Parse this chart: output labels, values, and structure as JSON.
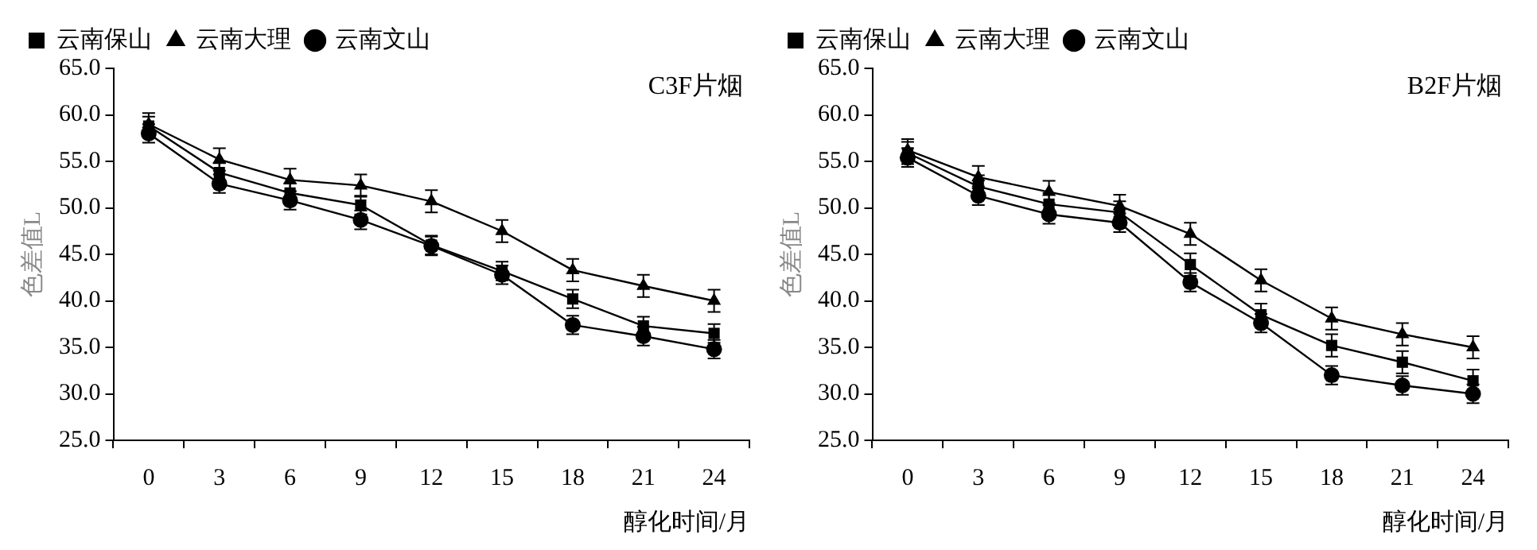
{
  "chart_data": [
    {
      "type": "line",
      "annotations": [
        "C3F片烟"
      ],
      "xlabel": "醇化时间/月",
      "ylabel": "色差值L",
      "categories": [
        "0",
        "3",
        "6",
        "9",
        "12",
        "15",
        "18",
        "21",
        "24"
      ],
      "ylim": [
        25,
        65
      ],
      "yticks": [
        {
          "value": 25,
          "label": "25.0"
        },
        {
          "value": 30,
          "label": "30.0"
        },
        {
          "value": 35,
          "label": "35.0"
        },
        {
          "value": 40,
          "label": "40.0"
        },
        {
          "value": 45,
          "label": "45.0"
        },
        {
          "value": 50,
          "label": "50.0"
        },
        {
          "value": 55,
          "label": "55.0"
        },
        {
          "value": 60,
          "label": "60.0"
        },
        {
          "value": 65,
          "label": "65.0"
        }
      ],
      "grid": false,
      "legend": "top",
      "line_style": "solid",
      "series": [
        {
          "name": "云南保山",
          "color": "#000000",
          "marker": "square",
          "values": [
            58.8,
            53.8,
            51.6,
            50.3,
            46.0,
            43.2,
            40.2,
            37.3,
            36.5
          ],
          "errors": [
            1.0,
            1.0,
            1.0,
            1.0,
            1.0,
            1.0,
            1.0,
            1.0,
            1.0
          ]
        },
        {
          "name": "云南大理",
          "color": "#000000",
          "marker": "triangle",
          "values": [
            59.0,
            55.2,
            53.0,
            52.4,
            50.7,
            47.5,
            43.3,
            41.6,
            40.0
          ],
          "errors": [
            1.2,
            1.2,
            1.2,
            1.2,
            1.2,
            1.2,
            1.2,
            1.2,
            1.2
          ]
        },
        {
          "name": "云南文山",
          "color": "#000000",
          "marker": "circle",
          "values": [
            58.0,
            52.6,
            50.8,
            48.7,
            45.9,
            42.8,
            37.4,
            36.2,
            34.8
          ],
          "errors": [
            1.0,
            1.0,
            1.0,
            1.0,
            1.0,
            1.0,
            1.0,
            1.0,
            1.0
          ]
        }
      ]
    },
    {
      "type": "line",
      "annotations": [
        "B2F片烟"
      ],
      "xlabel": "醇化时间/月",
      "ylabel": "色差值L",
      "categories": [
        "0",
        "3",
        "6",
        "9",
        "12",
        "15",
        "18",
        "21",
        "24"
      ],
      "ylim": [
        25,
        65
      ],
      "yticks": [
        {
          "value": 25,
          "label": "25.0"
        },
        {
          "value": 30,
          "label": "30.0"
        },
        {
          "value": 35,
          "label": "35.0"
        },
        {
          "value": 40,
          "label": "40.0"
        },
        {
          "value": 45,
          "label": "45.0"
        },
        {
          "value": 50,
          "label": "50.0"
        },
        {
          "value": 55,
          "label": "55.0"
        },
        {
          "value": 60,
          "label": "60.0"
        },
        {
          "value": 65,
          "label": "65.0"
        }
      ],
      "grid": false,
      "legend": "top",
      "line_style": "solid",
      "series": [
        {
          "name": "云南保山",
          "color": "#000000",
          "marker": "square",
          "values": [
            55.9,
            52.3,
            50.4,
            49.5,
            43.9,
            38.5,
            35.2,
            33.4,
            31.4
          ],
          "errors": [
            1.2,
            1.2,
            1.2,
            1.2,
            1.2,
            1.2,
            1.2,
            1.2,
            1.2
          ]
        },
        {
          "name": "云南大理",
          "color": "#000000",
          "marker": "triangle",
          "values": [
            56.2,
            53.3,
            51.7,
            50.2,
            47.2,
            42.2,
            38.1,
            36.4,
            35.0
          ],
          "errors": [
            1.2,
            1.2,
            1.2,
            1.2,
            1.2,
            1.2,
            1.2,
            1.2,
            1.2
          ]
        },
        {
          "name": "云南文山",
          "color": "#000000",
          "marker": "circle",
          "values": [
            55.4,
            51.3,
            49.3,
            48.4,
            42.0,
            37.6,
            32.0,
            30.9,
            30.0
          ],
          "errors": [
            1.0,
            1.0,
            1.0,
            1.0,
            1.0,
            1.0,
            1.0,
            1.0,
            1.0
          ]
        }
      ]
    }
  ]
}
